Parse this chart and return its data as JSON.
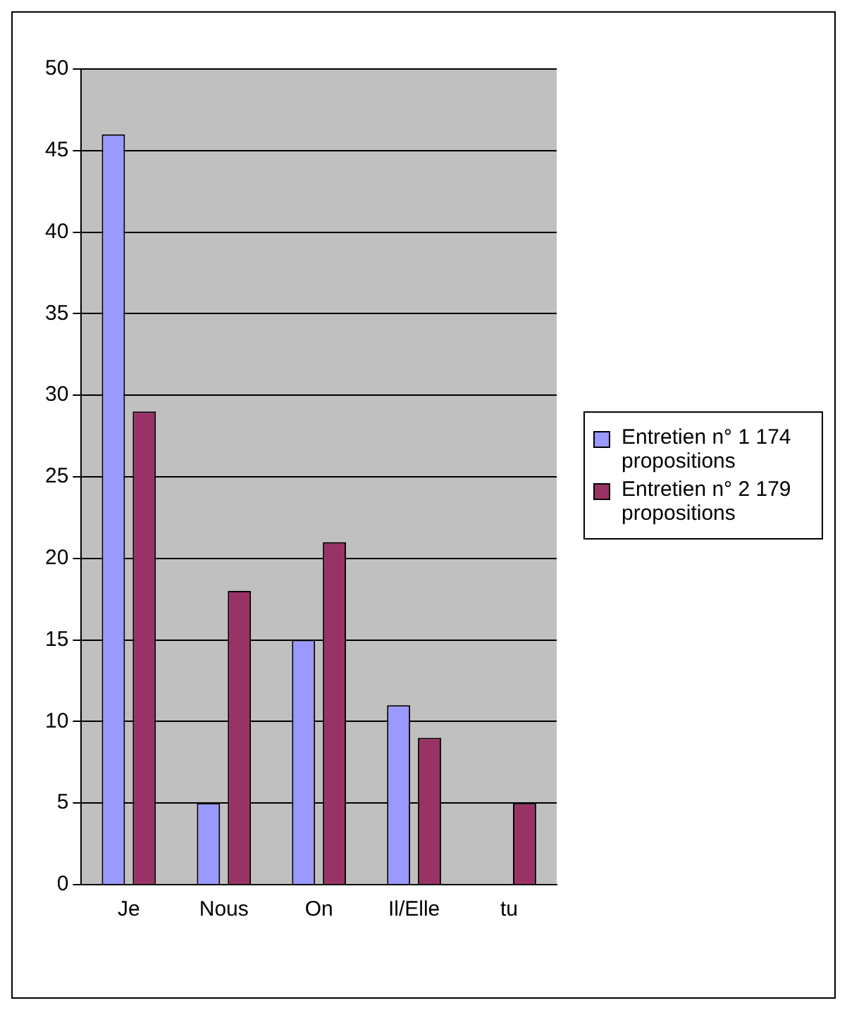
{
  "chart_data": {
    "type": "bar",
    "categories": [
      "Je",
      "Nous",
      "On",
      "Il/Elle",
      "tu"
    ],
    "series": [
      {
        "name": "Entretien n° 1 174 propositions",
        "color": "#9999ff",
        "values": [
          46,
          5,
          15,
          11,
          null
        ]
      },
      {
        "name": "Entretien n° 2 179 propositions",
        "color": "#993366",
        "values": [
          29,
          18,
          21,
          9,
          5
        ]
      }
    ],
    "ylim": [
      0,
      50
    ],
    "yticks": [
      0,
      5,
      10,
      15,
      20,
      25,
      30,
      35,
      40,
      45,
      50
    ],
    "grid": "y",
    "legend": "right"
  }
}
